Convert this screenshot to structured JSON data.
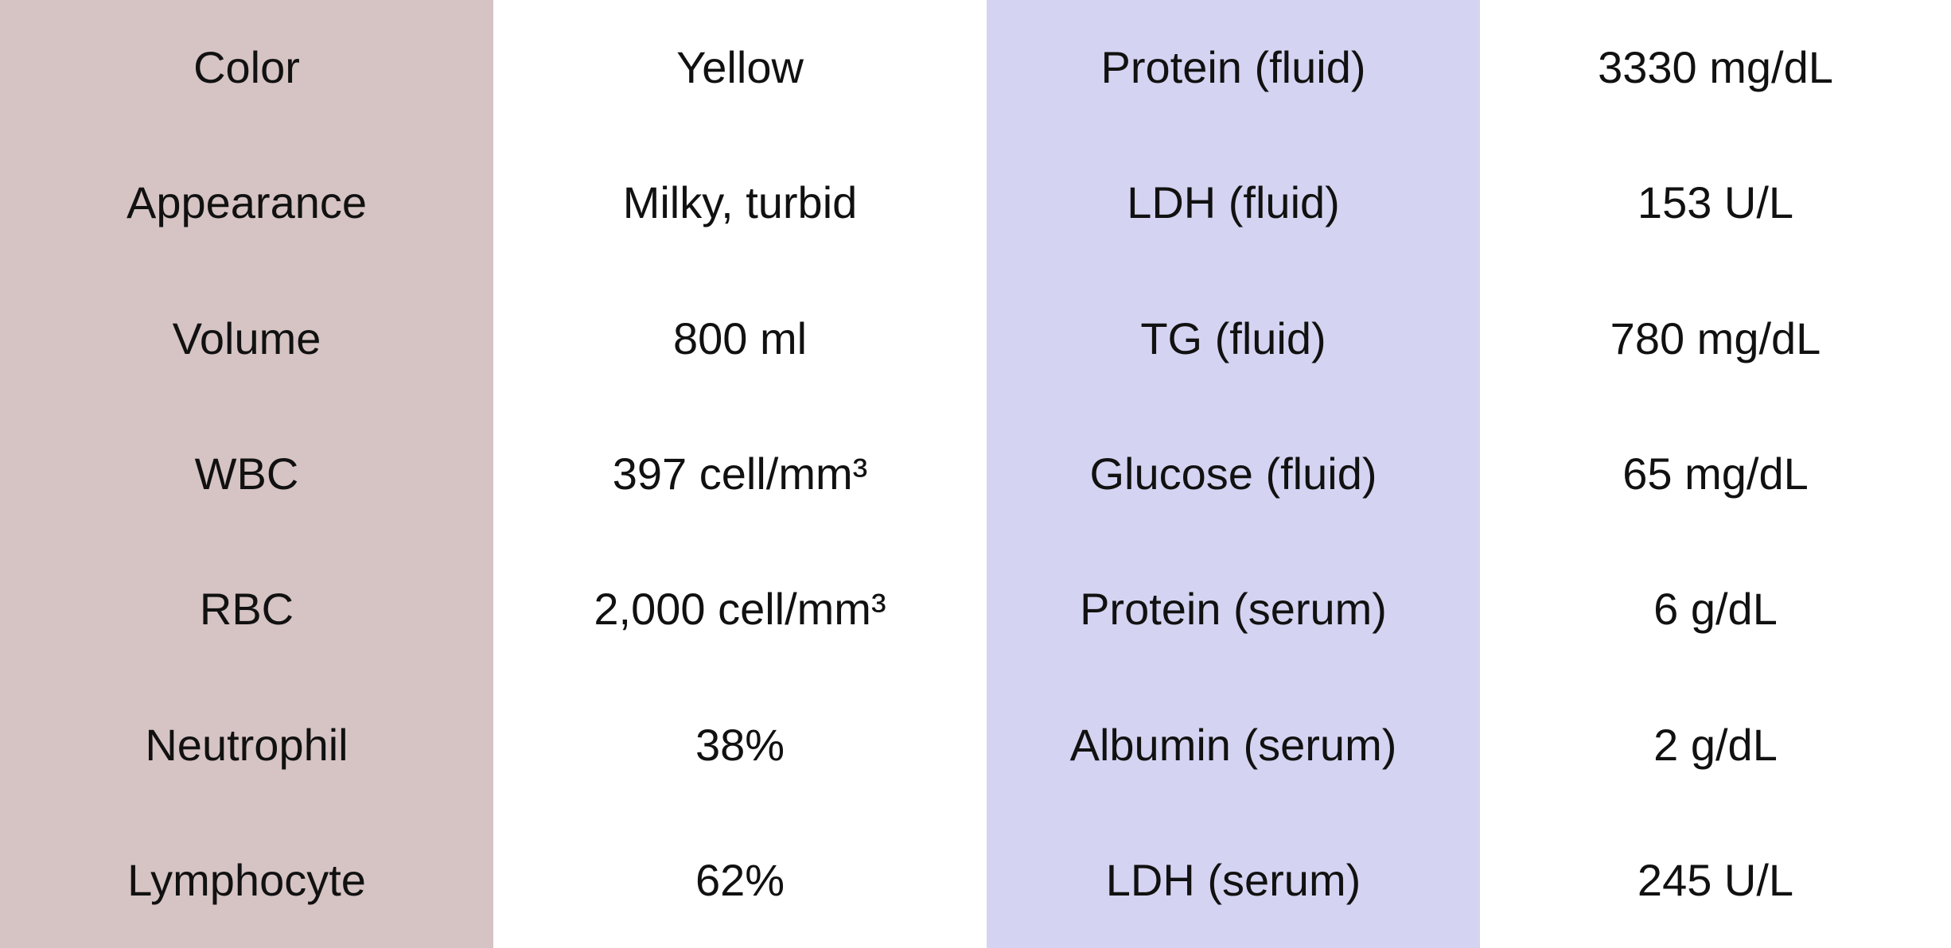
{
  "colors": {
    "left_parameter_column": "#d6c3c3",
    "right_parameter_column": "#d4d3f1",
    "value_column": "#ffffff",
    "text": "#111111"
  },
  "left_table": {
    "rows": [
      {
        "parameter": "Color",
        "value": "Yellow"
      },
      {
        "parameter": "Appearance",
        "value": "Milky, turbid"
      },
      {
        "parameter": "Volume",
        "value": "800 ml"
      },
      {
        "parameter": "WBC",
        "value": "397 cell/mm³"
      },
      {
        "parameter": "RBC",
        "value": "2,000 cell/mm³"
      },
      {
        "parameter": "Neutrophil",
        "value": "38%"
      },
      {
        "parameter": "Lymphocyte",
        "value": "62%"
      }
    ]
  },
  "right_table": {
    "rows": [
      {
        "parameter": "Protein (fluid)",
        "value": "3330 mg/dL"
      },
      {
        "parameter": "LDH (fluid)",
        "value": "153 U/L"
      },
      {
        "parameter": "TG (fluid)",
        "value": "780 mg/dL"
      },
      {
        "parameter": "Glucose (fluid)",
        "value": "65 mg/dL"
      },
      {
        "parameter": "Protein (serum)",
        "value": "6 g/dL"
      },
      {
        "parameter": "Albumin (serum)",
        "value": "2 g/dL"
      },
      {
        "parameter": "LDH (serum)",
        "value": "245 U/L"
      }
    ]
  }
}
